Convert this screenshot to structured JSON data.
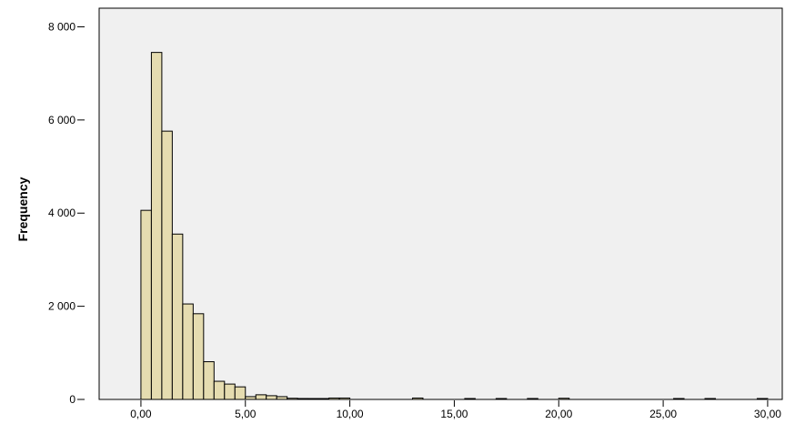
{
  "chart_data": {
    "type": "bar",
    "title": "",
    "xlabel": "",
    "ylabel": "Frequency",
    "xlim": [
      -2.0,
      30.7
    ],
    "ylim": [
      0,
      8400
    ],
    "bin_width": 0.5,
    "xticks": [
      {
        "value": 0,
        "label": "0,00"
      },
      {
        "value": 5,
        "label": "5,00"
      },
      {
        "value": 10,
        "label": "10,00"
      },
      {
        "value": 15,
        "label": "15,00"
      },
      {
        "value": 20,
        "label": "20,00"
      },
      {
        "value": 25,
        "label": "25,00"
      },
      {
        "value": 30,
        "label": "30,00"
      }
    ],
    "yticks": [
      {
        "value": 0,
        "label": "0"
      },
      {
        "value": 2000,
        "label": "2 000"
      },
      {
        "value": 4000,
        "label": "4 000"
      },
      {
        "value": 6000,
        "label": "6 000"
      },
      {
        "value": 8000,
        "label": "8 000"
      }
    ],
    "bins": [
      {
        "x": 0.0,
        "count": 4060
      },
      {
        "x": 0.5,
        "count": 7450
      },
      {
        "x": 1.0,
        "count": 5760
      },
      {
        "x": 1.5,
        "count": 3550
      },
      {
        "x": 2.0,
        "count": 2050
      },
      {
        "x": 2.5,
        "count": 1840
      },
      {
        "x": 3.0,
        "count": 810
      },
      {
        "x": 3.5,
        "count": 390
      },
      {
        "x": 4.0,
        "count": 330
      },
      {
        "x": 4.5,
        "count": 270
      },
      {
        "x": 5.0,
        "count": 60
      },
      {
        "x": 5.5,
        "count": 100
      },
      {
        "x": 6.0,
        "count": 80
      },
      {
        "x": 6.5,
        "count": 60
      },
      {
        "x": 7.0,
        "count": 25
      },
      {
        "x": 7.5,
        "count": 20
      },
      {
        "x": 8.0,
        "count": 15
      },
      {
        "x": 8.5,
        "count": 15
      },
      {
        "x": 9.0,
        "count": 30
      },
      {
        "x": 9.5,
        "count": 30
      },
      {
        "x": 13.0,
        "count": 30
      },
      {
        "x": 15.5,
        "count": 10
      },
      {
        "x": 17.0,
        "count": 10
      },
      {
        "x": 18.5,
        "count": 20
      },
      {
        "x": 20.0,
        "count": 25
      },
      {
        "x": 25.5,
        "count": 10
      },
      {
        "x": 27.0,
        "count": 10
      },
      {
        "x": 29.5,
        "count": 10
      }
    ],
    "colors": {
      "bar_fill": "#e5dcb0",
      "bar_stroke": "#000000",
      "plot_background": "#f0f0f0",
      "axis": "#000000"
    },
    "grid": false,
    "legend": "none"
  }
}
